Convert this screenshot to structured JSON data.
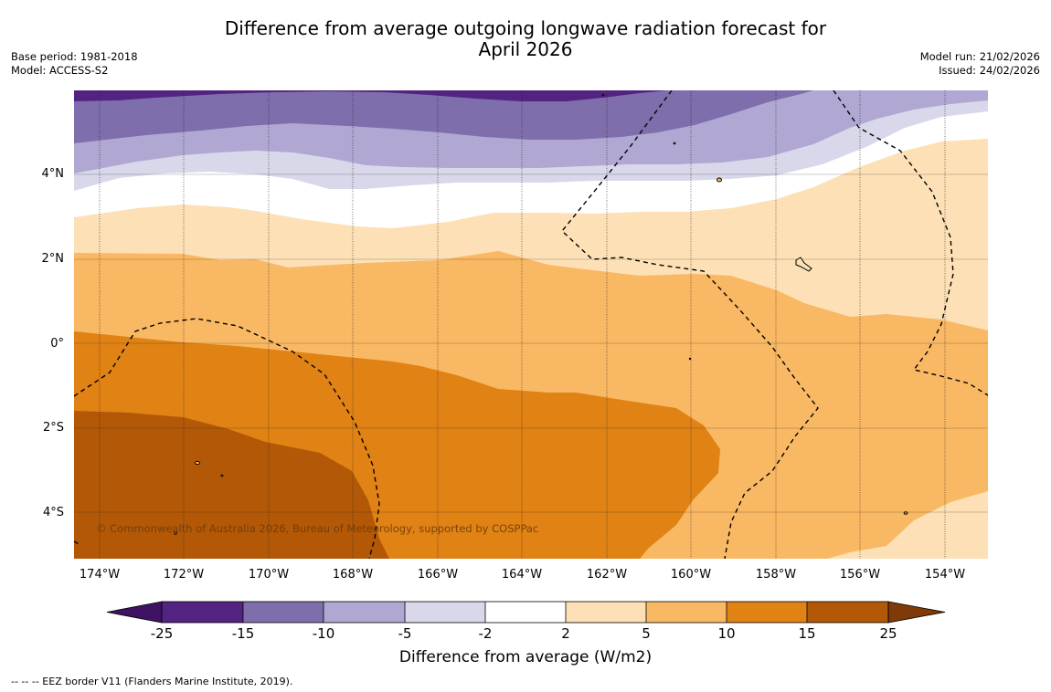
{
  "title": {
    "line1": "Difference from average outgoing longwave radiation forecast for",
    "line2": "April 2026"
  },
  "meta_left": {
    "base_period": "Base period: 1981-2018",
    "model": "Model: ACCESS-S2"
  },
  "meta_right": {
    "model_run": "Model run: 21/02/2026",
    "issued": "Issued: 24/02/2026"
  },
  "map": {
    "lat_labels": [
      "4°N",
      "2°N",
      "0°",
      "2°S",
      "4°S"
    ],
    "lon_labels": [
      "174°W",
      "172°W",
      "170°W",
      "168°W",
      "166°W",
      "164°W",
      "162°W",
      "160°W",
      "158°W",
      "156°W",
      "154°W"
    ],
    "copyright": "© Commonwealth of Australia 2026, Bureau of Meteorology, supported by COSPPac"
  },
  "colorbar": {
    "ticks": [
      "-25",
      "-15",
      "-10",
      "-5",
      "-2",
      "2",
      "5",
      "10",
      "15",
      "25"
    ],
    "colors": [
      "#3f1363",
      "#532381",
      "#7e6eab",
      "#b0a8d2",
      "#d9d8eb",
      "#ffffff",
      "#fde0b6",
      "#f9b863",
      "#e08214",
      "#b35806",
      "#7e3b08"
    ],
    "label": "Difference from average (W/m2)"
  },
  "footer": {
    "legend": "--  --  -- EEZ border V11 (Flanders Marine Institute, 2019)."
  }
}
